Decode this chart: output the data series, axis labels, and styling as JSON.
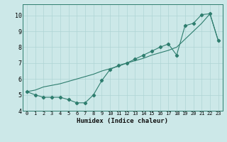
{
  "line1_x": [
    0,
    1,
    2,
    3,
    4,
    5,
    6,
    7,
    8,
    9,
    10,
    11,
    12,
    13,
    14,
    15,
    16,
    17,
    18,
    19,
    20,
    21,
    22,
    23
  ],
  "line1_y": [
    5.2,
    5.3,
    5.5,
    5.6,
    5.7,
    5.85,
    6.0,
    6.15,
    6.3,
    6.5,
    6.65,
    6.8,
    7.0,
    7.15,
    7.3,
    7.5,
    7.65,
    7.8,
    8.0,
    8.5,
    9.0,
    9.5,
    10.1,
    8.4
  ],
  "line2_x": [
    0,
    1,
    2,
    3,
    4,
    5,
    6,
    7,
    8,
    9,
    10,
    11,
    12,
    13,
    14,
    15,
    16,
    17,
    18,
    19,
    20,
    21,
    22,
    23
  ],
  "line2_y": [
    5.2,
    5.0,
    4.85,
    4.85,
    4.85,
    4.7,
    4.5,
    4.5,
    5.0,
    5.9,
    6.6,
    6.85,
    7.0,
    7.25,
    7.5,
    7.75,
    8.0,
    8.2,
    7.5,
    9.35,
    9.5,
    10.05,
    10.1,
    8.4
  ],
  "line_color": "#2e7d6e",
  "bg_color": "#cce8e8",
  "grid_color": "#afd4d4",
  "xlabel": "Humidex (Indice chaleur)",
  "xlim": [
    -0.5,
    23.5
  ],
  "ylim": [
    4.0,
    10.7
  ],
  "yticks": [
    4,
    5,
    6,
    7,
    8,
    9,
    10
  ],
  "xticks": [
    0,
    1,
    2,
    3,
    4,
    5,
    6,
    7,
    8,
    9,
    10,
    11,
    12,
    13,
    14,
    15,
    16,
    17,
    18,
    19,
    20,
    21,
    22,
    23
  ],
  "marker": "D",
  "markersize": 2.2,
  "xlabel_fontsize": 6.5,
  "tick_fontsize_x": 5.0,
  "tick_fontsize_y": 6.0
}
